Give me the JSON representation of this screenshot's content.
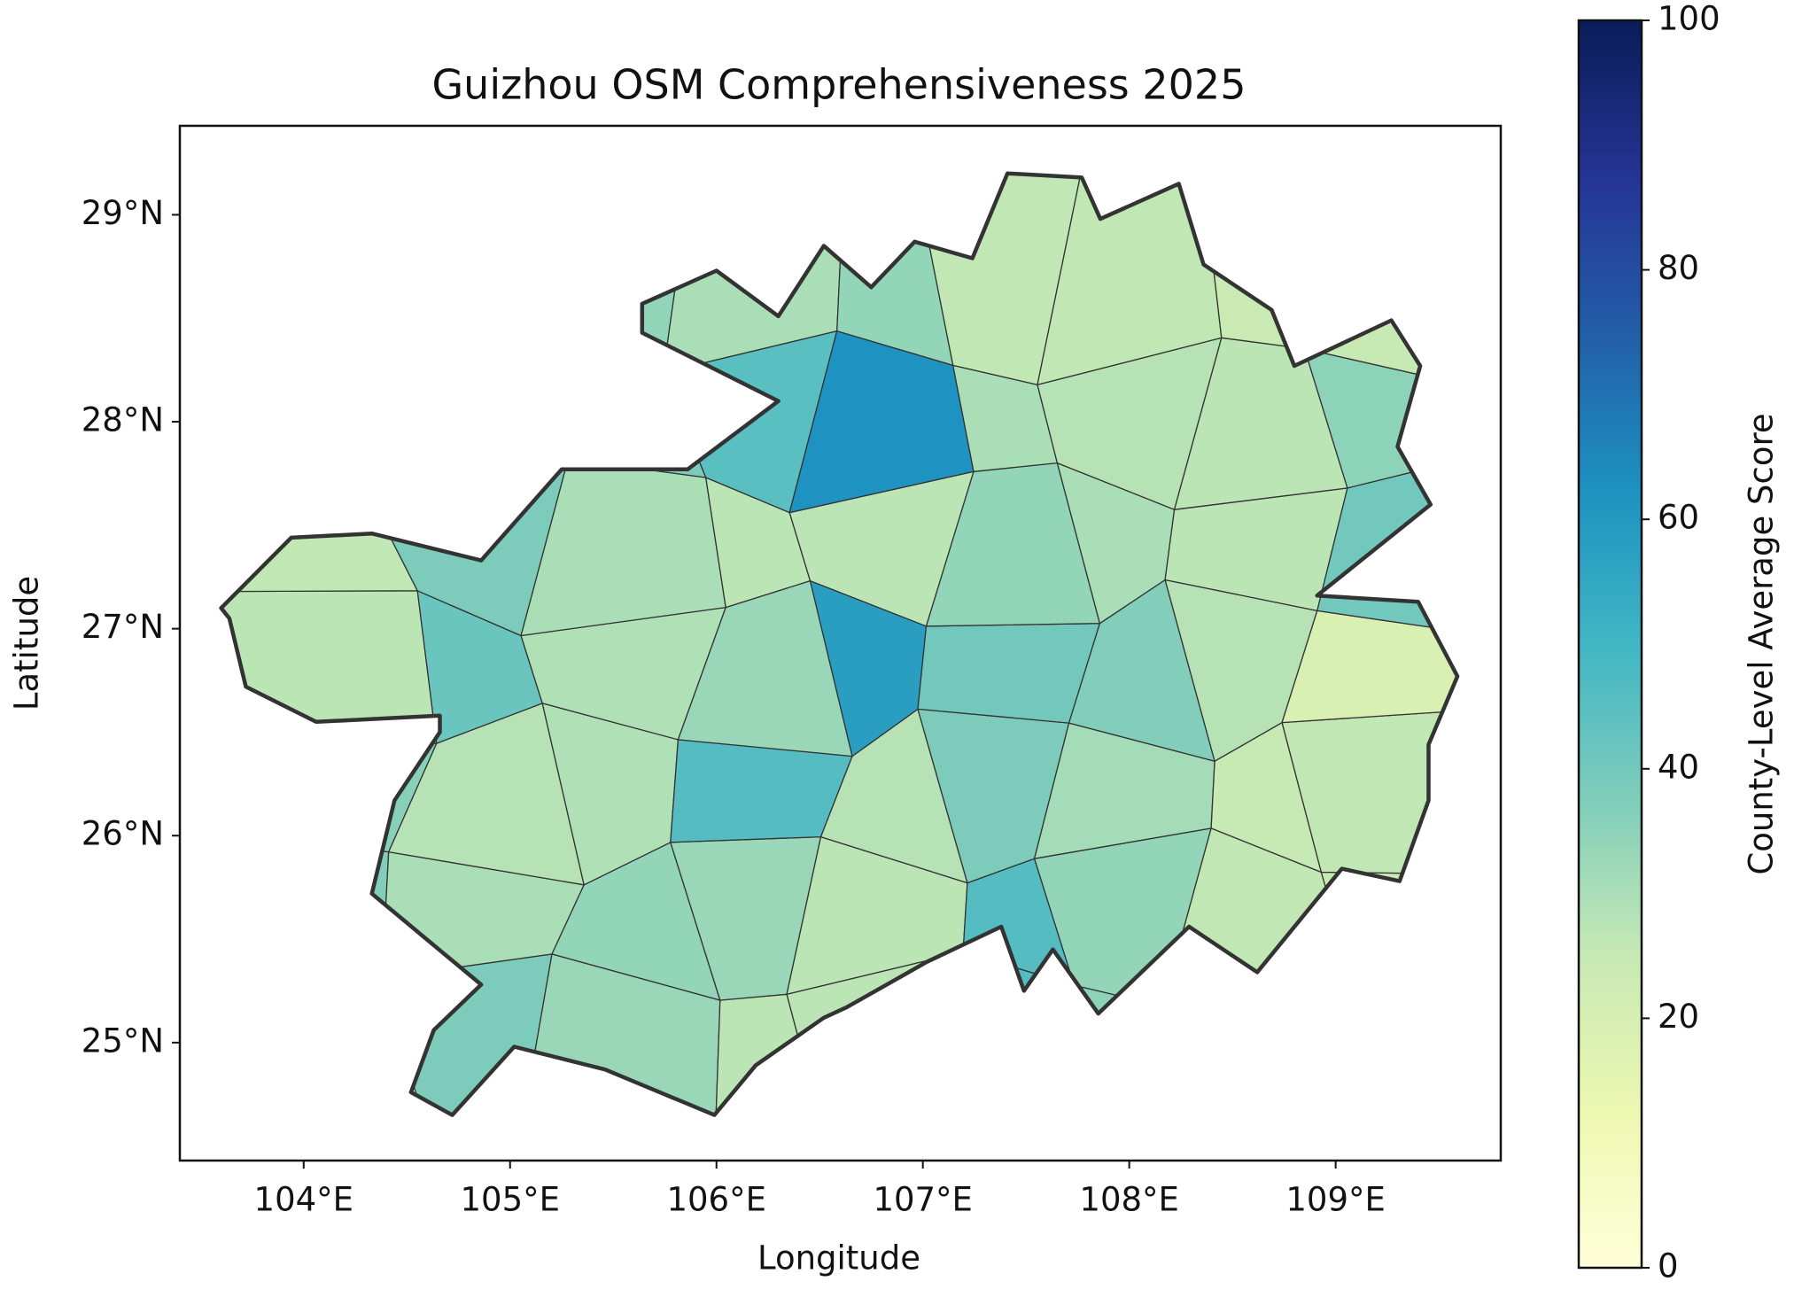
{
  "chart_data": {
    "type": "choropleth",
    "title": "Guizhou OSM Comprehensiveness 2025",
    "x_label": "Longitude",
    "y_label": "Latitude",
    "xlim": [
      103.4,
      109.8
    ],
    "ylim": [
      24.43,
      29.43
    ],
    "xticks": [
      {
        "value": 104,
        "label": "104°E"
      },
      {
        "value": 105,
        "label": "105°E"
      },
      {
        "value": 106,
        "label": "106°E"
      },
      {
        "value": 107,
        "label": "107°E"
      },
      {
        "value": 108,
        "label": "108°E"
      },
      {
        "value": 109,
        "label": "109°E"
      }
    ],
    "yticks": [
      {
        "value": 25,
        "label": "25°N"
      },
      {
        "value": 26,
        "label": "26°N"
      },
      {
        "value": 27,
        "label": "27°N"
      },
      {
        "value": 28,
        "label": "28°N"
      },
      {
        "value": 29,
        "label": "29°N"
      }
    ],
    "colormap": "YlGnBu",
    "clim": [
      0,
      100
    ],
    "cticks": [
      0,
      20,
      40,
      60,
      80,
      100
    ],
    "colorbar_label": "County-Level Average Score",
    "values": [
      [
        null,
        38,
        33,
        27,
        27,
        46,
        35,
        28,
        null
      ],
      [
        37,
        30,
        34,
        33,
        27,
        46,
        34,
        26,
        25
      ],
      [
        36,
        28,
        29,
        46,
        28,
        38,
        31,
        25,
        26
      ],
      [
        27,
        42,
        29,
        33,
        58,
        40,
        37,
        28,
        19
      ],
      [
        26,
        38,
        30,
        27,
        27,
        34,
        30,
        27,
        40
      ],
      [
        null,
        null,
        38,
        45,
        62,
        30,
        28,
        27,
        35
      ],
      [
        null,
        null,
        34,
        30,
        34,
        26,
        26,
        24,
        25
      ]
    ]
  }
}
